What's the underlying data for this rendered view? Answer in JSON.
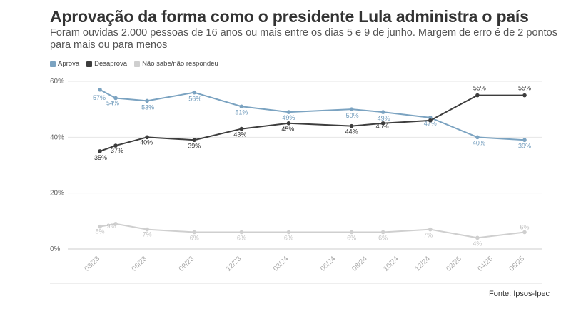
{
  "chart_data": {
    "type": "line",
    "title": "Aprovação da forma como o presidente Lula administra o país",
    "subtitle": "Foram ouvidas 2.000 pessoas de 16 anos ou mais entre os dias 5 e 9 de junho. Margem de erro é de 2 pontos para mais ou para menos",
    "source": "Fonte: Ipsos-Ipec",
    "x_ticks": [
      "03/23",
      "06/23",
      "09/23",
      "12/23",
      "03/24",
      "06/24",
      "08/24",
      "10/24",
      "12/24",
      "02/25",
      "04/25",
      "06/25"
    ],
    "y_ticks": [
      "0%",
      "20%",
      "40%",
      "60%"
    ],
    "ylim": [
      0,
      60
    ],
    "grid": true,
    "legend_position": "top-left",
    "series": [
      {
        "name": "Aprova",
        "color": "#7ba3c1",
        "points": [
          {
            "x": "03/23",
            "y": 57,
            "label": "57%"
          },
          {
            "x": "04/23",
            "y": 54,
            "label": "54%"
          },
          {
            "x": "06/23",
            "y": 53,
            "label": "53%"
          },
          {
            "x": "09/23",
            "y": 56,
            "label": "56%"
          },
          {
            "x": "12/23",
            "y": 51,
            "label": "51%"
          },
          {
            "x": "03/24",
            "y": 49,
            "label": "49%"
          },
          {
            "x": "07/24",
            "y": 50,
            "label": "50%"
          },
          {
            "x": "09/24",
            "y": 49,
            "label": "49%"
          },
          {
            "x": "12/24",
            "y": 47,
            "label": "47%"
          },
          {
            "x": "03/25",
            "y": 40,
            "label": "40%"
          },
          {
            "x": "06/25",
            "y": 39,
            "label": "39%"
          }
        ]
      },
      {
        "name": "Desaprova",
        "color": "#3d3d3d",
        "points": [
          {
            "x": "03/23",
            "y": 35,
            "label": "35%"
          },
          {
            "x": "04/23",
            "y": 37,
            "label": "37%"
          },
          {
            "x": "06/23",
            "y": 40,
            "label": "40%"
          },
          {
            "x": "09/23",
            "y": 39,
            "label": "39%"
          },
          {
            "x": "12/23",
            "y": 43,
            "label": "43%"
          },
          {
            "x": "03/24",
            "y": 45,
            "label": "45%"
          },
          {
            "x": "07/24",
            "y": 44,
            "label": "44%"
          },
          {
            "x": "09/24",
            "y": 45,
            "label": "45%"
          },
          {
            "x": "12/24",
            "y": 46,
            "label": ""
          },
          {
            "x": "03/25",
            "y": 55,
            "label": "55%"
          },
          {
            "x": "06/25",
            "y": 55,
            "label": "55%"
          }
        ]
      },
      {
        "name": "Não sabe/não respondeu",
        "color": "#cfcfcf",
        "points": [
          {
            "x": "03/23",
            "y": 8,
            "label": "8%"
          },
          {
            "x": "04/23",
            "y": 9,
            "label": "9%"
          },
          {
            "x": "06/23",
            "y": 7,
            "label": "7%"
          },
          {
            "x": "09/23",
            "y": 6,
            "label": "6%"
          },
          {
            "x": "12/23",
            "y": 6,
            "label": "6%"
          },
          {
            "x": "03/24",
            "y": 6,
            "label": "6%"
          },
          {
            "x": "07/24",
            "y": 6,
            "label": "6%"
          },
          {
            "x": "09/24",
            "y": 6,
            "label": "6%"
          },
          {
            "x": "12/24",
            "y": 7,
            "label": "7%"
          },
          {
            "x": "03/25",
            "y": 4,
            "label": "4%"
          },
          {
            "x": "06/25",
            "y": 6,
            "label": "6%"
          }
        ]
      }
    ]
  }
}
